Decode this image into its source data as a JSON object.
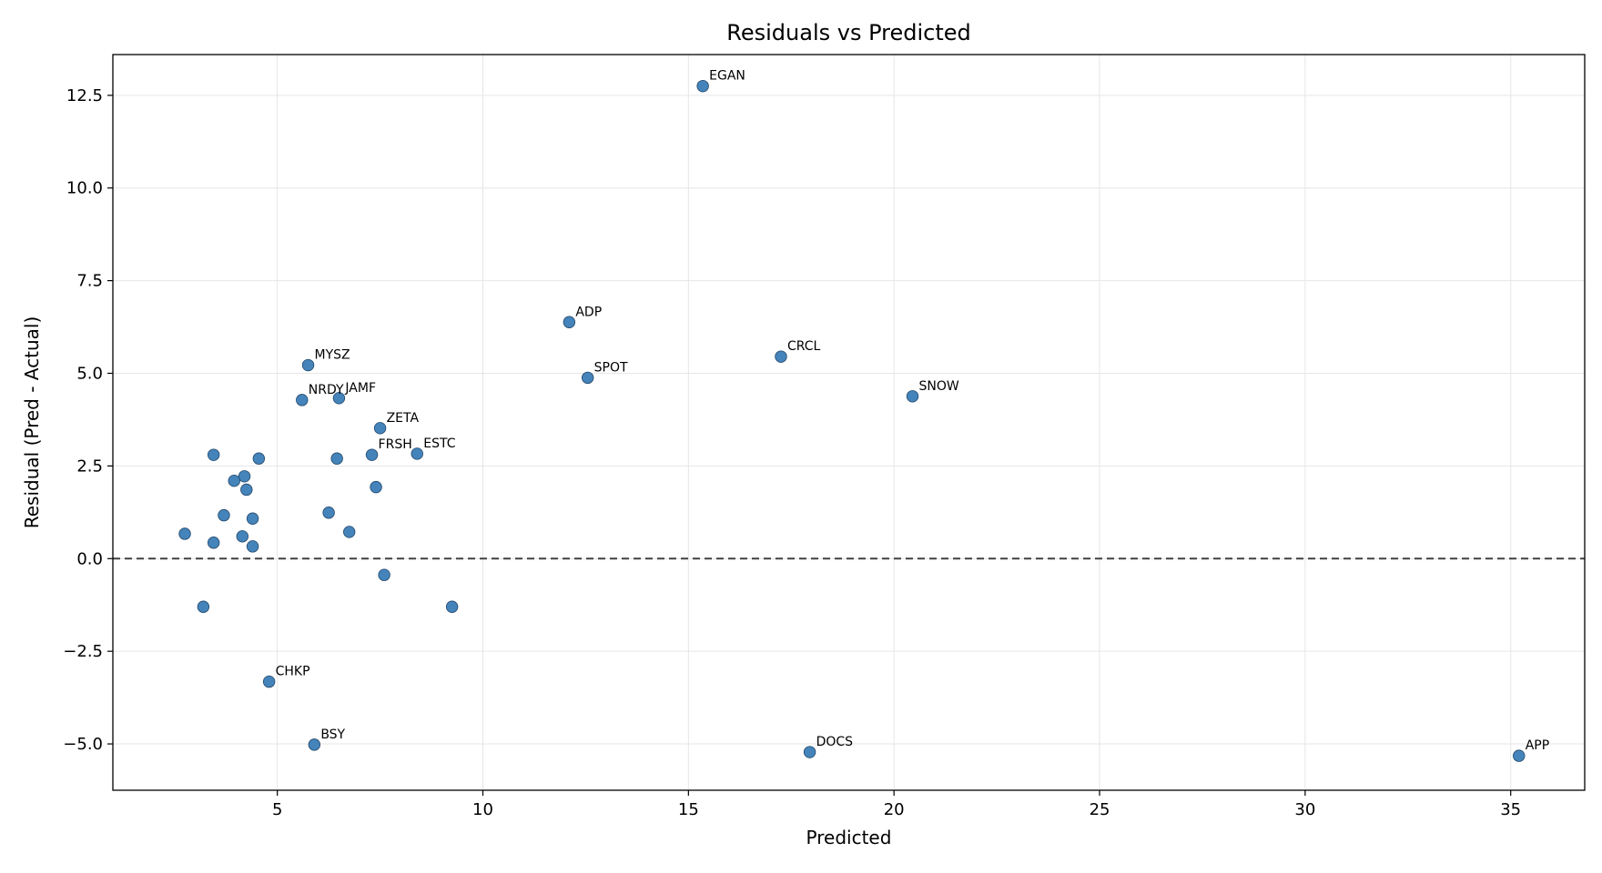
{
  "chart_data": {
    "type": "scatter",
    "title": "Residuals vs Predicted",
    "xlabel": "Predicted",
    "ylabel": "Residual (Pred - Actual)",
    "xlim": [
      1.0,
      36.8
    ],
    "ylim": [
      -6.25,
      13.6
    ],
    "xticks": [
      5,
      10,
      15,
      20,
      25,
      30,
      35
    ],
    "xtick_labels": [
      "5",
      "10",
      "15",
      "20",
      "25",
      "30",
      "35"
    ],
    "yticks": [
      -5.0,
      -2.5,
      0.0,
      2.5,
      5.0,
      7.5,
      10.0,
      12.5
    ],
    "ytick_labels": [
      "−5.0",
      "−2.5",
      "0.0",
      "2.5",
      "5.0",
      "7.5",
      "10.0",
      "12.5"
    ],
    "grid": true,
    "reference_line": {
      "y": 0,
      "style": "dashed"
    },
    "colors": {
      "marker": "#3a7db6",
      "marker_edge": "#23476b",
      "grid": "#e6e6e6",
      "ref_line": "#404040"
    },
    "points": [
      {
        "x": 15.35,
        "y": 12.75,
        "label": "EGAN"
      },
      {
        "x": 12.1,
        "y": 6.38,
        "label": "ADP"
      },
      {
        "x": 17.25,
        "y": 5.45,
        "label": "CRCL"
      },
      {
        "x": 12.55,
        "y": 4.88,
        "label": "SPOT"
      },
      {
        "x": 20.45,
        "y": 4.38,
        "label": "SNOW"
      },
      {
        "x": 5.75,
        "y": 5.22,
        "label": "MYSZ"
      },
      {
        "x": 5.6,
        "y": 4.28,
        "label": "NRDY"
      },
      {
        "x": 6.5,
        "y": 4.33,
        "label": "JAMF"
      },
      {
        "x": 7.5,
        "y": 3.52,
        "label": "ZETA"
      },
      {
        "x": 7.3,
        "y": 2.8,
        "label": "FRSH"
      },
      {
        "x": 8.4,
        "y": 2.83,
        "label": "ESTC"
      },
      {
        "x": 4.8,
        "y": -3.32,
        "label": "CHKP"
      },
      {
        "x": 5.9,
        "y": -5.02,
        "label": "BSY"
      },
      {
        "x": 17.95,
        "y": -5.22,
        "label": "DOCS"
      },
      {
        "x": 35.2,
        "y": -5.32,
        "label": "APP"
      },
      {
        "x": 3.45,
        "y": 2.8,
        "label": ""
      },
      {
        "x": 4.55,
        "y": 2.7,
        "label": ""
      },
      {
        "x": 6.45,
        "y": 2.7,
        "label": ""
      },
      {
        "x": 4.2,
        "y": 2.22,
        "label": ""
      },
      {
        "x": 3.95,
        "y": 2.1,
        "label": ""
      },
      {
        "x": 4.25,
        "y": 1.86,
        "label": ""
      },
      {
        "x": 7.4,
        "y": 1.93,
        "label": ""
      },
      {
        "x": 3.7,
        "y": 1.17,
        "label": ""
      },
      {
        "x": 4.4,
        "y": 1.08,
        "label": ""
      },
      {
        "x": 6.25,
        "y": 1.24,
        "label": ""
      },
      {
        "x": 2.75,
        "y": 0.67,
        "label": ""
      },
      {
        "x": 6.75,
        "y": 0.72,
        "label": ""
      },
      {
        "x": 4.15,
        "y": 0.6,
        "label": ""
      },
      {
        "x": 3.45,
        "y": 0.43,
        "label": ""
      },
      {
        "x": 4.4,
        "y": 0.33,
        "label": ""
      },
      {
        "x": 7.6,
        "y": -0.44,
        "label": ""
      },
      {
        "x": 3.2,
        "y": -1.3,
        "label": ""
      },
      {
        "x": 9.25,
        "y": -1.3,
        "label": ""
      }
    ]
  }
}
